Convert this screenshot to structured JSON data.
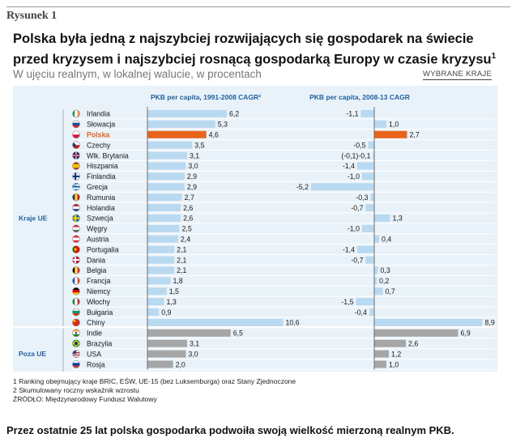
{
  "header": {
    "figure_label": "Rysunek 1",
    "title_line1": "Polska była jedną z najszybciej rozwijających się gospodarek na świecie",
    "title_line2": "przed kryzysem i najszybciej rosnącą gospodarką Europy w czasie kryzysu",
    "title_sup": "1",
    "subtitle": "W ujęciu realnym, w lokalnej walucie, w procentach",
    "selected_countries_link": "WYBRANE KRAJE"
  },
  "chart_data": {
    "type": "bar",
    "orientation": "horizontal",
    "panels": [
      {
        "name": "PKB per capita, 1991-2008 CAGR²",
        "key": "cagr_1991_2008"
      },
      {
        "name": "PKB per capita, 2008-13 CAGR",
        "key": "cagr_2008_2013"
      }
    ],
    "groups": [
      {
        "label": "Kraje UE",
        "start": 0,
        "end": 20
      },
      {
        "label": "Poza UE",
        "start": 21,
        "end": 25
      }
    ],
    "countries": [
      {
        "name": "Irlandia",
        "v1": 6.2,
        "v2": -1.1,
        "l1": "6,2",
        "l2": "-1,1"
      },
      {
        "name": "Słowacja",
        "v1": 5.3,
        "v2": 1.0,
        "l1": "5,3",
        "l2": "1,0"
      },
      {
        "name": "Polska",
        "v1": 4.6,
        "v2": 2.7,
        "l1": "4,6",
        "l2": "2,7",
        "highlight": true
      },
      {
        "name": "Czechy",
        "v1": 3.5,
        "v2": -0.5,
        "l1": "3,5",
        "l2": "-0,5"
      },
      {
        "name": "Wlk. Brytania",
        "v1": 3.1,
        "v2": -0.1,
        "l1": "3,1",
        "l2": "(-0,1)-0,1"
      },
      {
        "name": "Hiszpania",
        "v1": 3.0,
        "v2": -1.4,
        "l1": "3,0",
        "l2": "-1,4"
      },
      {
        "name": "Finlandia",
        "v1": 2.9,
        "v2": -1.0,
        "l1": "2,9",
        "l2": "-1,0"
      },
      {
        "name": "Grecja",
        "v1": 2.9,
        "v2": -5.2,
        "l1": "2,9",
        "l2": "-5,2"
      },
      {
        "name": "Rumunia",
        "v1": 2.7,
        "v2": -0.3,
        "l1": "2,7",
        "l2": "-0,3"
      },
      {
        "name": "Holandia",
        "v1": 2.6,
        "v2": -0.7,
        "l1": "2,6",
        "l2": "-0,7"
      },
      {
        "name": "Szwecja",
        "v1": 2.6,
        "v2": 1.3,
        "l1": "2,6",
        "l2": "1,3"
      },
      {
        "name": "Węgry",
        "v1": 2.5,
        "v2": -1.0,
        "l1": "2,5",
        "l2": "-1,0"
      },
      {
        "name": "Austria",
        "v1": 2.4,
        "v2": 0.4,
        "l1": "2,4",
        "l2": "0,4"
      },
      {
        "name": "Portugalia",
        "v1": 2.1,
        "v2": -1.4,
        "l1": "2,1",
        "l2": "-1,4"
      },
      {
        "name": "Dania",
        "v1": 2.1,
        "v2": -0.7,
        "l1": "2,1",
        "l2": "-0,7"
      },
      {
        "name": "Belgia",
        "v1": 2.1,
        "v2": 0.3,
        "l1": "2,1",
        "l2": "0,3"
      },
      {
        "name": "Francja",
        "v1": 1.8,
        "v2": 0.2,
        "l1": "1,8",
        "l2": "0,2"
      },
      {
        "name": "Niemcy",
        "v1": 1.5,
        "v2": 0.7,
        "l1": "1,5",
        "l2": "0,7"
      },
      {
        "name": "Włochy",
        "v1": 1.3,
        "v2": -1.5,
        "l1": "1,3",
        "l2": "-1,5"
      },
      {
        "name": "Bułgaria",
        "v1": 0.9,
        "v2": -0.4,
        "l1": "0,9",
        "l2": "-0,4"
      },
      {
        "name": "Chiny",
        "v1": 10.6,
        "v2": 8.9,
        "l1": "10,6",
        "l2": "8,9"
      },
      {
        "name": "Indie",
        "v1": 6.5,
        "v2": 6.9,
        "l1": "6,5",
        "l2": "6,9"
      },
      {
        "name": "Brazylia",
        "v1": 3.1,
        "v2": 2.6,
        "l1": "3,1",
        "l2": "2,6"
      },
      {
        "name": "USA",
        "v1": 3.0,
        "v2": 1.2,
        "l1": "3,0",
        "l2": "1,2"
      },
      {
        "name": "Rosja",
        "v1": 2.0,
        "v2": 1.0,
        "l1": "2,0",
        "l2": "1,0"
      }
    ],
    "colors": {
      "eu_bar": "#b9d9f0",
      "highlight_bar": "#e8631b",
      "highlight_text": "#e8631b",
      "non_eu_bar": "#a6a6a6",
      "panel_bg": "#e9f2f9",
      "header_text": "#1e5f9e",
      "group_text": "#1e5f9e"
    },
    "flag_icons": [
      "ireland-flag-icon",
      "slovakia-flag-icon",
      "poland-flag-icon",
      "czech-flag-icon",
      "uk-flag-icon",
      "spain-flag-icon",
      "finland-flag-icon",
      "greece-flag-icon",
      "romania-flag-icon",
      "netherlands-flag-icon",
      "sweden-flag-icon",
      "hungary-flag-icon",
      "austria-flag-icon",
      "portugal-flag-icon",
      "denmark-flag-icon",
      "belgium-flag-icon",
      "france-flag-icon",
      "germany-flag-icon",
      "italy-flag-icon",
      "bulgaria-flag-icon",
      "china-flag-icon",
      "india-flag-icon",
      "brazil-flag-icon",
      "usa-flag-icon",
      "russia-flag-icon"
    ]
  },
  "footnotes": {
    "note1": "1 Ranking obejmujący kraje BRIC, EŚW, UE-15 (bez Luksemburga) oraz Stany Zjednoczone",
    "note2": "2 Skumulowany roczny wskaźnik wzrostu",
    "source": "ŹRÓDŁO: Międzynarodowy Fundusz Walutowy"
  },
  "closing_text": "Przez ostatnie 25 lat polska gospodarka podwoiła swoją wielkość mierzoną realnym PKB."
}
